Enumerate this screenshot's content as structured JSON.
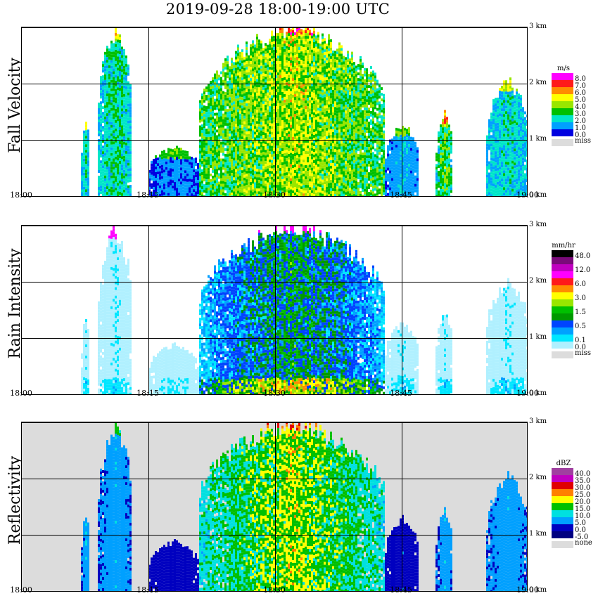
{
  "title": "2019-09-28   18:00-19:00 UTC",
  "x_ticks": [
    "18:00",
    "18:15",
    "18:30",
    "18:45",
    "19:00"
  ],
  "y_ticks": [
    "3 km",
    "2 km",
    "1 km",
    "0 km"
  ],
  "panels": [
    {
      "label": "Fall Velocity",
      "unit": "m/s",
      "legend": [
        {
          "label": "8.0",
          "color": "#ff00ff"
        },
        {
          "label": "7.0",
          "color": "#ff1a1a"
        },
        {
          "label": "6.0",
          "color": "#ff8c00"
        },
        {
          "label": "5.0",
          "color": "#ffff00"
        },
        {
          "label": "4.0",
          "color": "#99e600"
        },
        {
          "label": "3.0",
          "color": "#00c000"
        },
        {
          "label": "2.0",
          "color": "#00e6c8"
        },
        {
          "label": "1.0",
          "color": "#00a0ff"
        },
        {
          "label": "0.0",
          "color": "#0000e0"
        }
      ],
      "missing_label": "miss"
    },
    {
      "label": "Rain Intensity",
      "unit": "mm/hr",
      "legend": [
        {
          "label": "48.0",
          "color": "#000000"
        },
        {
          "label": "",
          "color": "#7a0a7a"
        },
        {
          "label": "12.0",
          "color": "#c000c0"
        },
        {
          "label": "",
          "color": "#ff00ff"
        },
        {
          "label": "6.0",
          "color": "#ff1a1a"
        },
        {
          "label": "",
          "color": "#ff8c00"
        },
        {
          "label": "3.0",
          "color": "#ffff00"
        },
        {
          "label": "",
          "color": "#99e600"
        },
        {
          "label": "1.5",
          "color": "#00c000"
        },
        {
          "label": "",
          "color": "#009900"
        },
        {
          "label": "0.5",
          "color": "#0044ff"
        },
        {
          "label": "",
          "color": "#00a0ff"
        },
        {
          "label": "0.1",
          "color": "#00e6ff"
        },
        {
          "label": "0.0",
          "color": "#b0f0ff"
        }
      ],
      "missing_label": "miss"
    },
    {
      "label": "Reflectivity",
      "unit": "dBZ",
      "legend": [
        {
          "label": "40.0",
          "color": "#a040a0"
        },
        {
          "label": "35.0",
          "color": "#c000c0"
        },
        {
          "label": "30.0",
          "color": "#e00000"
        },
        {
          "label": "25.0",
          "color": "#ff8000"
        },
        {
          "label": "20.0",
          "color": "#ffff00"
        },
        {
          "label": "15.0",
          "color": "#00c000"
        },
        {
          "label": "10.0",
          "color": "#00e0e0"
        },
        {
          "label": "5.0",
          "color": "#00a0ff"
        },
        {
          "label": "0.0",
          "color": "#0000c0"
        },
        {
          "label": "-5.0",
          "color": "#000080"
        }
      ],
      "missing_label": "none"
    }
  ],
  "chart_data": {
    "type": "heatmap",
    "title": "2019-09-28   18:00-19:00 UTC",
    "x_axis": {
      "ticks": [
        "18:00",
        "18:15",
        "18:30",
        "18:45",
        "19:00"
      ],
      "range": [
        "18:00",
        "19:00"
      ],
      "unit": "UTC"
    },
    "y_axis": {
      "ticks": [
        "0 km",
        "1 km",
        "2 km",
        "3 km"
      ],
      "range_km": [
        0,
        3.1
      ]
    },
    "grid": true,
    "legend_placement": "right",
    "events": [
      {
        "start": "18:07",
        "end": "18:08",
        "top_km": 1.4,
        "fall_velocity": 3.0,
        "rain_intensity": 0.1,
        "reflectivity": 10.0
      },
      {
        "start": "18:09",
        "end": "18:13",
        "top_km": 3.0,
        "fall_velocity": 3.5,
        "rain_intensity": 0.1,
        "reflectivity": 10.0
      },
      {
        "start": "18:15",
        "end": "18:21",
        "top_km": 0.9,
        "fall_velocity": 1.5,
        "rain_intensity": 0.05,
        "reflectivity": 2.0
      },
      {
        "start": "18:21",
        "end": "18:43",
        "top_km": 3.1,
        "fall_velocity": 5.5,
        "rain_intensity": 1.5,
        "reflectivity": 25.0
      },
      {
        "start": "18:43",
        "end": "18:47",
        "top_km": 1.3,
        "fall_velocity": 2.0,
        "rain_intensity": 0.1,
        "reflectivity": 5.0
      },
      {
        "start": "18:49",
        "end": "18:51",
        "top_km": 1.5,
        "fall_velocity": 4.5,
        "rain_intensity": 0.1,
        "reflectivity": 10.0
      },
      {
        "start": "18:55",
        "end": "19:00",
        "top_km": 2.1,
        "fall_velocity": 3.0,
        "rain_intensity": 0.1,
        "reflectivity": 10.0
      }
    ]
  }
}
